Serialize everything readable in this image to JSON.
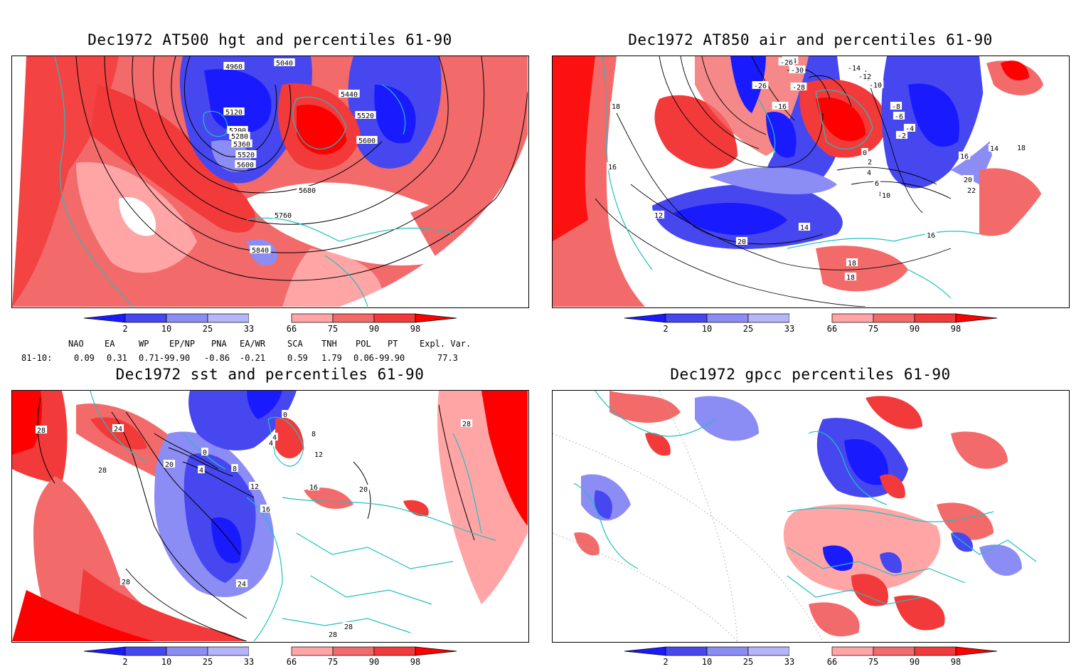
{
  "colors": {
    "blue_dark": "#1a1aff",
    "blue_mid": "#4747f0",
    "blue_light": "#8c8cf5",
    "blue_pale": "#b5b5fa",
    "red_pale": "#ffa5a5",
    "red_light": "#f26a6a",
    "red_mid": "#f23a3a",
    "red_dark": "#ff0000",
    "coast": "#20c0c0",
    "contour": "#000000"
  },
  "colorbar": {
    "labels": [
      "2",
      "10",
      "25",
      "33",
      "66",
      "75",
      "90",
      "98"
    ]
  },
  "panels": [
    {
      "title": "Dec1972 AT500 hgt and percentiles 61-90",
      "contour_labels": [
        "4960",
        "5040",
        "5440",
        "5520",
        "5600",
        "5120",
        "5200",
        "5280",
        "5360",
        "5520",
        "5600",
        "5680",
        "5760",
        "5840"
      ]
    },
    {
      "title": "Dec1972 AT850 air and percentiles 61-90",
      "contour_labels": [
        "-24",
        "-26",
        "-30",
        "-14",
        "-12",
        "-10",
        "-26",
        "-28",
        "-16",
        "-8",
        "-6",
        "-4",
        "-2",
        "0",
        "2",
        "4",
        "6",
        "8",
        "10",
        "16",
        "14",
        "18",
        "20",
        "22",
        "16",
        "18",
        "16",
        "12",
        "14",
        "20",
        "18",
        "18"
      ]
    },
    {
      "title": "Dec1972 sst and percentiles 61-90",
      "contour_labels": [
        "28",
        "24",
        "28",
        "20",
        "0",
        "4",
        "8",
        "12",
        "16",
        "0",
        "4",
        "4",
        "8",
        "12",
        "16",
        "20",
        "28",
        "24",
        "28",
        "28",
        "28"
      ]
    },
    {
      "title": "Dec1972 gpcc percentiles 61-90",
      "contour_labels": []
    }
  ],
  "indices": {
    "headers": [
      "NAO",
      "EA",
      "WP",
      "EP/NP",
      "PNA",
      "EA/WR",
      "SCA",
      "TNH",
      "POL",
      "PT",
      "Expl. Var."
    ],
    "row_label": "81-10:",
    "values": [
      "0.09",
      "0.31",
      "0.71-99.90",
      "-0.86",
      "-0.21",
      "0.59",
      "1.79",
      "0.06-99.90",
      "77.3"
    ]
  }
}
